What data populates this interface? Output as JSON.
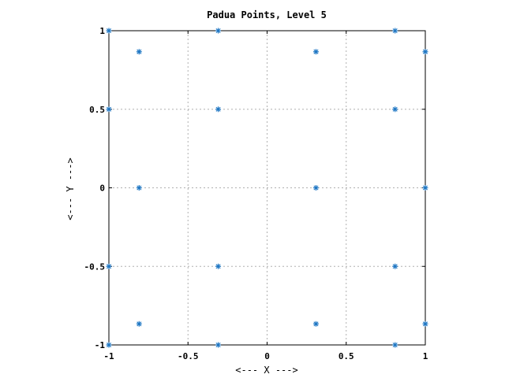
{
  "chart_data": {
    "type": "scatter",
    "title": "Padua Points, Level 5",
    "xlabel": "<--- X --->",
    "ylabel": "<--- Y --->",
    "xlim": [
      -1,
      1
    ],
    "ylim": [
      -1,
      1
    ],
    "grid": true,
    "marker": "asterisk",
    "color": "#1f77c4",
    "xticks": [
      -1,
      -0.5,
      0,
      0.5,
      1
    ],
    "yticks": [
      -1,
      -0.5,
      0,
      0.5,
      1
    ],
    "xtick_labels": [
      "-1",
      "-0.5",
      "0",
      "0.5",
      "1"
    ],
    "ytick_labels": [
      "-1",
      "-0.5",
      "0",
      "0.5",
      "1"
    ],
    "points": [
      {
        "x": -1,
        "y": 1
      },
      {
        "x": -1,
        "y": 0.5
      },
      {
        "x": -1,
        "y": -0.5
      },
      {
        "x": -1,
        "y": -1
      },
      {
        "x": -0.809,
        "y": 0.866
      },
      {
        "x": -0.809,
        "y": 0
      },
      {
        "x": -0.809,
        "y": -0.866
      },
      {
        "x": -0.309,
        "y": 1
      },
      {
        "x": -0.309,
        "y": 0.5
      },
      {
        "x": -0.309,
        "y": -0.5
      },
      {
        "x": -0.309,
        "y": -1
      },
      {
        "x": 0.309,
        "y": 0.866
      },
      {
        "x": 0.309,
        "y": 0
      },
      {
        "x": 0.309,
        "y": -0.866
      },
      {
        "x": 0.809,
        "y": 1
      },
      {
        "x": 0.809,
        "y": 0.5
      },
      {
        "x": 0.809,
        "y": -0.5
      },
      {
        "x": 0.809,
        "y": -1
      },
      {
        "x": 1,
        "y": 0.866
      },
      {
        "x": 1,
        "y": 0
      },
      {
        "x": 1,
        "y": -0.866
      }
    ]
  }
}
